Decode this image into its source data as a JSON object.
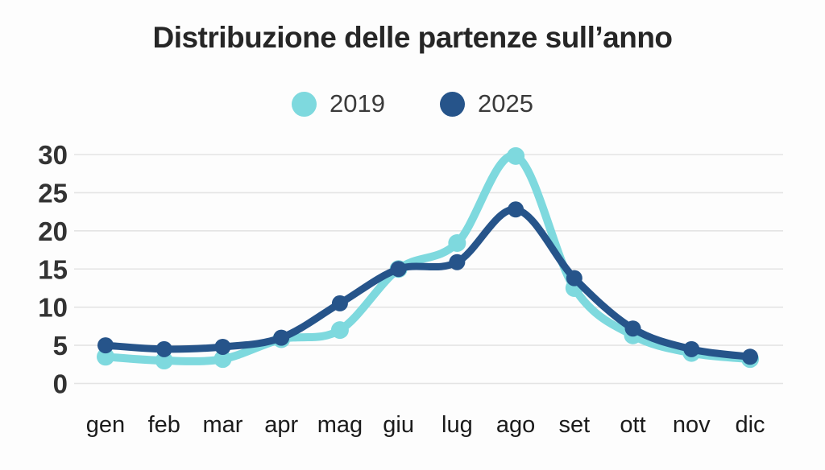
{
  "chart_data": {
    "type": "line",
    "title": "Distribuzione delle partenze sull’anno",
    "categories": [
      "gen",
      "feb",
      "mar",
      "apr",
      "mag",
      "giu",
      "lug",
      "ago",
      "set",
      "ott",
      "nov",
      "dic"
    ],
    "series": [
      {
        "name": "2019",
        "color": "#7ed9de",
        "values": [
          3.5,
          3,
          3.2,
          5.8,
          7,
          15,
          18.4,
          29.8,
          12.5,
          6.3,
          4,
          3.2
        ]
      },
      {
        "name": "2025",
        "color": "#26548a",
        "values": [
          5,
          4.5,
          4.8,
          6,
          10.5,
          15,
          15.9,
          22.8,
          13.8,
          7.2,
          4.5,
          3.5
        ]
      }
    ],
    "xlabel": "",
    "ylabel": "",
    "ylim": [
      0,
      30
    ],
    "yticks": [
      0,
      5,
      10,
      15,
      20,
      25,
      30
    ],
    "grid": "horizontal",
    "legend_position": "top",
    "background_color": "#fdfdfd",
    "gridline_color": "#e4e4e4"
  }
}
